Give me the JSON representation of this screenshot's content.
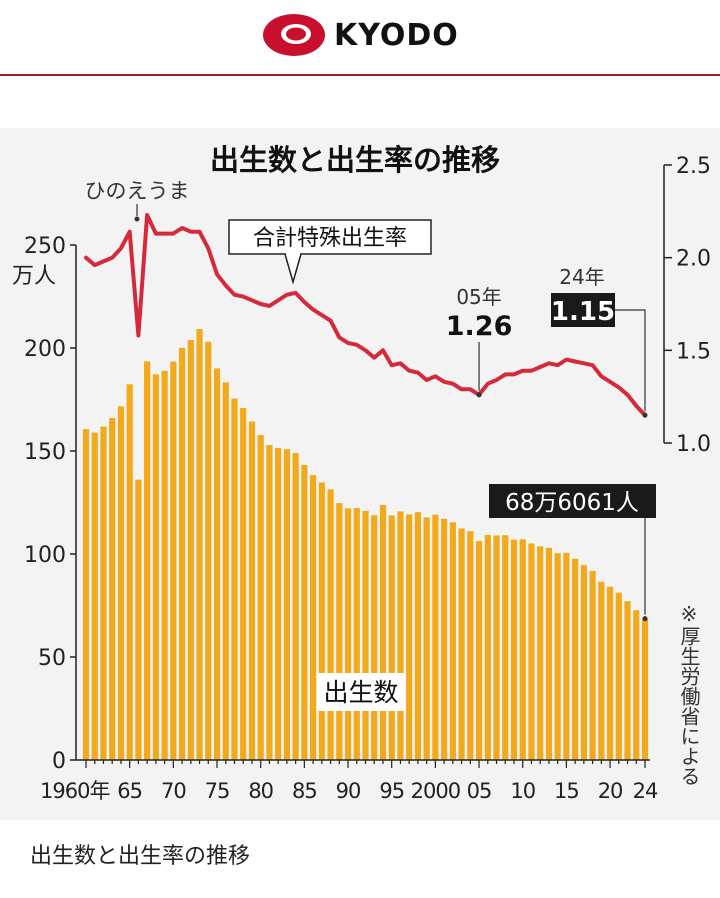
{
  "header": {
    "logo_text": "KYODO",
    "brand_color": "#c8102e"
  },
  "caption": "出生数と出生率の推移",
  "chart_data": {
    "type": "bar+line",
    "title": "出生数と出生率の推移",
    "left_axis_unit": "万人",
    "left_ylim": [
      0,
      250
    ],
    "left_ticks": [
      0,
      50,
      100,
      150,
      200,
      250
    ],
    "right_ylim": [
      1.0,
      2.5
    ],
    "right_ticks": [
      "1.0",
      "1.5",
      "2.0",
      "2.5"
    ],
    "x_tick_labels": [
      {
        "year": 1960,
        "label": "1960年"
      },
      {
        "year": 1965,
        "label": "65"
      },
      {
        "year": 1970,
        "label": "70"
      },
      {
        "year": 1975,
        "label": "75"
      },
      {
        "year": 1980,
        "label": "80"
      },
      {
        "year": 1985,
        "label": "85"
      },
      {
        "year": 1990,
        "label": "90"
      },
      {
        "year": 1995,
        "label": "95"
      },
      {
        "year": 2000,
        "label": "2000"
      },
      {
        "year": 2005,
        "label": "05"
      },
      {
        "year": 2010,
        "label": "10"
      },
      {
        "year": 2015,
        "label": "15"
      },
      {
        "year": 2020,
        "label": "20"
      },
      {
        "year": 2024,
        "label": "24"
      }
    ],
    "years": [
      1960,
      1961,
      1962,
      1963,
      1964,
      1965,
      1966,
      1967,
      1968,
      1969,
      1970,
      1971,
      1972,
      1973,
      1974,
      1975,
      1976,
      1977,
      1978,
      1979,
      1980,
      1981,
      1982,
      1983,
      1984,
      1985,
      1986,
      1987,
      1988,
      1989,
      1990,
      1991,
      1992,
      1993,
      1994,
      1995,
      1996,
      1997,
      1998,
      1999,
      2000,
      2001,
      2002,
      2003,
      2004,
      2005,
      2006,
      2007,
      2008,
      2009,
      2010,
      2011,
      2012,
      2013,
      2014,
      2015,
      2016,
      2017,
      2018,
      2019,
      2020,
      2021,
      2022,
      2023,
      2024
    ],
    "series": [
      {
        "name": "出生数",
        "color": "#f2aa1c",
        "axis": "left",
        "values": [
          160.6,
          158.9,
          161.9,
          166.0,
          171.7,
          182.4,
          136.1,
          193.5,
          187.2,
          188.9,
          193.4,
          200.1,
          203.9,
          209.2,
          203.0,
          190.1,
          183.3,
          175.5,
          170.9,
          164.3,
          157.7,
          152.9,
          151.5,
          150.9,
          149.0,
          143.2,
          138.3,
          134.7,
          131.4,
          124.7,
          122.2,
          122.3,
          120.9,
          118.8,
          123.8,
          118.7,
          120.7,
          119.2,
          120.3,
          117.8,
          119.1,
          117.1,
          115.4,
          112.4,
          111.1,
          106.3,
          109.3,
          109.0,
          109.1,
          107.0,
          107.1,
          105.1,
          103.7,
          103.0,
          100.4,
          100.6,
          97.7,
          94.6,
          91.8,
          86.5,
          84.1,
          81.2,
          77.1,
          72.7,
          68.6
        ]
      },
      {
        "name": "合計特殊出生率",
        "color": "#d42a3c",
        "axis": "right",
        "values": [
          2.0,
          1.96,
          1.98,
          2.0,
          2.05,
          2.14,
          1.58,
          2.23,
          2.13,
          2.13,
          2.13,
          2.16,
          2.14,
          2.14,
          2.05,
          1.91,
          1.85,
          1.8,
          1.79,
          1.77,
          1.75,
          1.74,
          1.77,
          1.8,
          1.81,
          1.76,
          1.72,
          1.69,
          1.66,
          1.57,
          1.54,
          1.53,
          1.5,
          1.46,
          1.5,
          1.42,
          1.43,
          1.39,
          1.38,
          1.34,
          1.36,
          1.33,
          1.32,
          1.29,
          1.29,
          1.26,
          1.32,
          1.34,
          1.37,
          1.37,
          1.39,
          1.39,
          1.41,
          1.43,
          1.42,
          1.45,
          1.44,
          1.43,
          1.42,
          1.36,
          1.33,
          1.3,
          1.26,
          1.2,
          1.15
        ]
      }
    ],
    "annotations": {
      "hinoeuma": "ひのえうま",
      "rate_label": "合計特殊出生率",
      "y2005_label": "05年",
      "y2005_value": "1.26",
      "y2024_label": "24年",
      "y2024_value": "1.15",
      "births_2024": "68万6061人",
      "births_label": "出生数",
      "source": "※厚生労働省による"
    }
  }
}
